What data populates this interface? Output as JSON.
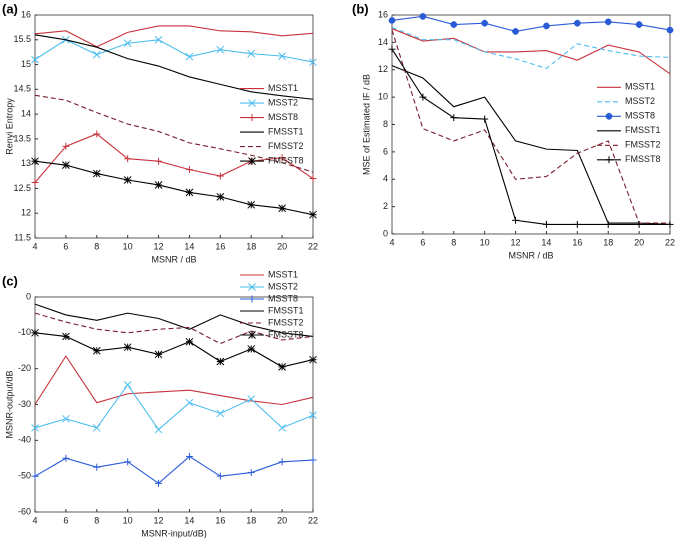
{
  "chart_data": [
    {
      "type": "line",
      "panel_label": "(a)",
      "x_label": "MSNR / dB",
      "y_label": "Renyi Entropy",
      "legend": "east",
      "x": [
        4,
        6,
        8,
        10,
        12,
        14,
        16,
        18,
        20,
        22
      ],
      "xlim": [
        4,
        22
      ],
      "xticks": [
        4,
        6,
        8,
        10,
        12,
        14,
        16,
        18,
        20,
        22
      ],
      "ylim": [
        11.5,
        16
      ],
      "yticks": [
        11.5,
        12,
        12.5,
        13,
        13.5,
        14,
        14.5,
        15,
        15.5,
        16
      ],
      "series": [
        {
          "name": "MSST1",
          "color": "#c8323c",
          "style": "solid",
          "marker": "none",
          "values": [
            15.62,
            15.68,
            15.36,
            15.65,
            15.78,
            15.78,
            15.68,
            15.66,
            15.58,
            15.63
          ]
        },
        {
          "name": "MSST2",
          "color": "#4dbeee",
          "style": "solid",
          "marker": "x",
          "values": [
            15.1,
            15.5,
            15.2,
            15.43,
            15.5,
            15.16,
            15.3,
            15.22,
            15.17,
            15.05
          ]
        },
        {
          "name": "MSST8",
          "color": "#c8323c",
          "style": "solid",
          "marker": "+",
          "values": [
            12.62,
            13.35,
            13.6,
            13.1,
            13.05,
            12.88,
            12.75,
            13.05,
            13.12,
            12.7
          ]
        },
        {
          "name": "FMSST1",
          "color": "#000000",
          "style": "solid",
          "marker": "none",
          "values": [
            15.6,
            15.5,
            15.35,
            15.12,
            14.97,
            14.75,
            14.6,
            14.45,
            14.37,
            14.3
          ]
        },
        {
          "name": "FMSST2",
          "color": "#7a1f2b",
          "style": "dashed",
          "marker": "none",
          "values": [
            14.38,
            14.28,
            14.03,
            13.8,
            13.65,
            13.42,
            13.3,
            13.17,
            13.02,
            12.83
          ]
        },
        {
          "name": "FMSST8",
          "color": "#000000",
          "style": "solid",
          "marker": "*",
          "values": [
            13.05,
            12.97,
            12.8,
            12.67,
            12.57,
            12.42,
            12.33,
            12.17,
            12.1,
            11.97
          ]
        }
      ]
    },
    {
      "type": "line",
      "panel_label": "(b)",
      "x_label": "MSNR / dB",
      "y_label": "MSE of Estimated IF / dB",
      "legend": "east",
      "x": [
        4,
        6,
        8,
        10,
        12,
        14,
        16,
        18,
        20,
        22
      ],
      "xlim": [
        4,
        22
      ],
      "xticks": [
        4,
        6,
        8,
        10,
        12,
        14,
        16,
        18,
        20,
        22
      ],
      "ylim": [
        0,
        16
      ],
      "yticks": [
        0,
        2,
        4,
        6,
        8,
        10,
        12,
        14,
        16
      ],
      "series": [
        {
          "name": "MSST1",
          "color": "#c8323c",
          "style": "solid",
          "marker": "none",
          "values": [
            15.0,
            14.1,
            14.3,
            13.3,
            13.3,
            13.4,
            12.7,
            13.8,
            13.3,
            11.7
          ]
        },
        {
          "name": "MSST2",
          "color": "#4dbeee",
          "style": "dashed",
          "marker": "none",
          "values": [
            15.1,
            14.2,
            14.2,
            13.3,
            12.8,
            12.1,
            13.9,
            13.4,
            13.0,
            12.9
          ]
        },
        {
          "name": "MSST8",
          "color": "#2a5bd7",
          "style": "solid",
          "marker": "o*",
          "values": [
            15.6,
            15.9,
            15.3,
            15.4,
            14.8,
            15.2,
            15.4,
            15.5,
            15.3,
            14.9
          ]
        },
        {
          "name": "FMSST1",
          "color": "#000000",
          "style": "solid",
          "marker": "none",
          "values": [
            12.3,
            11.4,
            9.3,
            10.0,
            6.8,
            6.2,
            6.1,
            0.8,
            0.8,
            0.7
          ]
        },
        {
          "name": "FMSST2",
          "color": "#7a1f2b",
          "style": "dashed",
          "marker": "none",
          "values": [
            14.9,
            7.7,
            6.8,
            7.6,
            4.0,
            4.2,
            5.9,
            6.8,
            0.8,
            0.8
          ]
        },
        {
          "name": "FMSST8",
          "color": "#000000",
          "style": "solid",
          "marker": "+",
          "values": [
            13.5,
            10.0,
            8.5,
            8.4,
            1.0,
            0.7,
            0.7,
            0.7,
            0.7,
            0.7
          ]
        }
      ]
    },
    {
      "type": "line",
      "panel_label": "(c)",
      "x_label": "MSNR-input/dB)",
      "y_label": "MSNR-output/dB",
      "legend": "northeast",
      "x": [
        4,
        6,
        8,
        10,
        12,
        14,
        16,
        18,
        20,
        22
      ],
      "xlim": [
        4,
        22
      ],
      "xticks": [
        4,
        6,
        8,
        10,
        12,
        14,
        16,
        18,
        20,
        22
      ],
      "ylim": [
        -60,
        0
      ],
      "yticks": [
        -60,
        -50,
        -40,
        -30,
        -20,
        -10,
        0
      ],
      "series": [
        {
          "name": "MSST1",
          "color": "#c8323c",
          "style": "solid",
          "marker": "none",
          "values": [
            -30,
            -16.5,
            -29.5,
            -27,
            -26.5,
            -26,
            -27.5,
            -29,
            -30,
            -28
          ]
        },
        {
          "name": "MSST2",
          "color": "#4dbeee",
          "style": "solid",
          "marker": "x",
          "values": [
            -36.5,
            -34,
            -36.5,
            -24.5,
            -37,
            -29.5,
            -32.5,
            -28.5,
            -36.5,
            -33
          ]
        },
        {
          "name": "MSST8",
          "color": "#2a5bd7",
          "style": "solid",
          "marker": "+",
          "values": [
            -50,
            -45,
            -47.5,
            -46,
            -52,
            -44.5,
            -50,
            -49,
            -46,
            -45.5
          ]
        },
        {
          "name": "FMSST1",
          "color": "#000000",
          "style": "solid",
          "marker": "none",
          "values": [
            -2,
            -5,
            -6.5,
            -4.5,
            -6,
            -9,
            -5,
            -8,
            -10,
            -11
          ]
        },
        {
          "name": "FMSST2",
          "color": "#7a1f2b",
          "style": "dashed",
          "marker": "none",
          "values": [
            -4.5,
            -7,
            -9,
            -10,
            -9,
            -8.5,
            -13,
            -9.5,
            -12,
            -11
          ]
        },
        {
          "name": "FMSST8",
          "color": "#000000",
          "style": "solid",
          "marker": "*",
          "values": [
            -10,
            -11,
            -15,
            -14,
            -16,
            -12.5,
            -18,
            -14.5,
            -19.5,
            -17.5
          ]
        }
      ]
    }
  ]
}
